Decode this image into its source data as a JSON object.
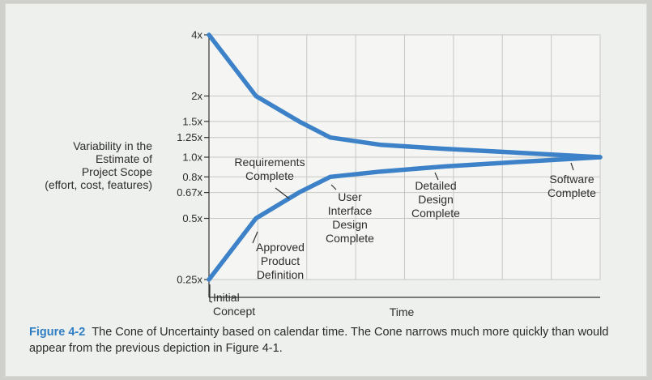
{
  "chart_data": {
    "type": "line",
    "xlabel": "Time",
    "y_scale": "log",
    "ylim": [
      0.25,
      4
    ],
    "y_ticks": [
      {
        "value": 4,
        "label": "4x"
      },
      {
        "value": 2,
        "label": "2x"
      },
      {
        "value": 1.5,
        "label": "1.5x"
      },
      {
        "value": 1.25,
        "label": "1.25x"
      },
      {
        "value": 1.0,
        "label": "1.0x"
      },
      {
        "value": 0.8,
        "label": "0.8x"
      },
      {
        "value": 0.67,
        "label": "0.67x"
      },
      {
        "value": 0.5,
        "label": "0.5x"
      },
      {
        "value": 0.25,
        "label": "0.25x"
      }
    ],
    "y_axis_title": [
      "Variability in the",
      "Estimate of",
      "Project Scope",
      "(effort, cost, features)"
    ],
    "x_gridlines": 8,
    "grid": true,
    "line_color": "#3d82c8",
    "series": [
      {
        "values": [
          {
            "x": 0,
            "y": 4
          },
          {
            "x": 0.12,
            "y": 2
          },
          {
            "x": 0.23,
            "y": 1.5
          },
          {
            "x": 0.31,
            "y": 1.25
          },
          {
            "x": 0.44,
            "y": 1.15
          },
          {
            "x": 0.6,
            "y": 1.1
          },
          {
            "x": 0.8,
            "y": 1.05
          },
          {
            "x": 1,
            "y": 1.0
          }
        ]
      },
      {
        "values": [
          {
            "x": 0,
            "y": 0.25
          },
          {
            "x": 0.12,
            "y": 0.5
          },
          {
            "x": 0.23,
            "y": 0.67
          },
          {
            "x": 0.31,
            "y": 0.8
          },
          {
            "x": 0.44,
            "y": 0.85
          },
          {
            "x": 0.6,
            "y": 0.9
          },
          {
            "x": 0.8,
            "y": 0.95
          },
          {
            "x": 1,
            "y": 1.0
          }
        ]
      }
    ],
    "annotations": [
      {
        "lines": [
          "Initial",
          "Concept"
        ]
      },
      {
        "lines": [
          "Approved",
          "Product",
          "Definition"
        ]
      },
      {
        "lines": [
          "Requirements",
          "Complete"
        ]
      },
      {
        "lines": [
          "User",
          "Interface",
          "Design",
          "Complete"
        ]
      },
      {
        "lines": [
          "Detailed",
          "Design",
          "Complete"
        ]
      },
      {
        "lines": [
          "Software",
          "Complete"
        ]
      }
    ]
  },
  "caption": {
    "label": "Figure 4-2",
    "text": "The Cone of Uncertainty based on calendar time. The Cone narrows much more quickly than would appear from the previous depiction in Figure 4-1."
  }
}
